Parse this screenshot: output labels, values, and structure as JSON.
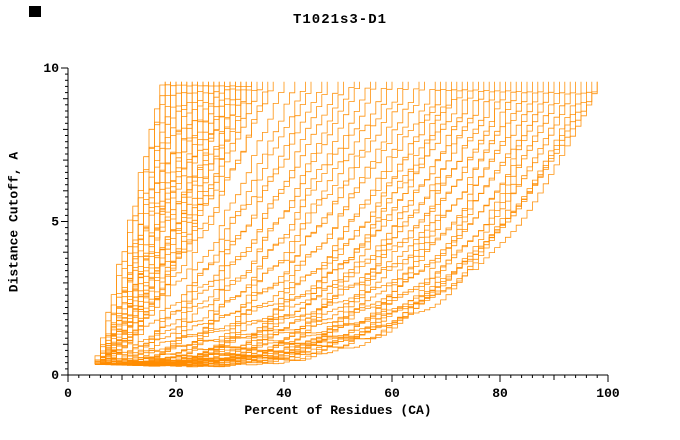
{
  "chart_data": {
    "type": "line",
    "title": "T1021s3-D1",
    "xlabel": "Percent of Residues (CA)",
    "ylabel": "Distance Cutoff, A",
    "xlim": [
      0,
      100
    ],
    "ylim": [
      0,
      10
    ],
    "x_major_ticks": [
      0,
      20,
      40,
      60,
      80,
      100
    ],
    "x_minor_step": 2,
    "y_major_ticks": [
      0,
      5,
      10
    ],
    "y_minor_step": 0.2,
    "grid": false,
    "legend": null,
    "line_color": "#ff8c00",
    "axis_color": "#000000",
    "y_start": 0.35,
    "y_end": 9.55,
    "curve_param_keys": [
      "x_start",
      "x_end",
      "shape_exponent",
      "wobble_amp",
      "wobble_phase"
    ],
    "curves": [
      [
        5,
        17.5,
        1.05,
        0.12,
        0.5
      ],
      [
        6,
        18,
        1.1,
        0.1,
        1.2
      ],
      [
        5.5,
        18.5,
        1.0,
        0.14,
        2.1
      ],
      [
        6.5,
        19,
        1.15,
        0.11,
        3.0
      ],
      [
        5,
        19.5,
        1.2,
        0.13,
        4.2
      ],
      [
        7,
        20,
        1.05,
        0.1,
        5.1
      ],
      [
        6,
        20.5,
        1.1,
        0.12,
        0.9
      ],
      [
        5.5,
        21,
        1.25,
        0.1,
        1.7
      ],
      [
        6.5,
        21.5,
        1.1,
        0.15,
        2.6
      ],
      [
        5,
        22,
        1.2,
        0.12,
        3.4
      ],
      [
        7,
        22.5,
        1.3,
        0.1,
        4.5
      ],
      [
        6,
        23,
        1.15,
        0.13,
        5.6
      ],
      [
        5.5,
        23.5,
        1.05,
        0.11,
        0.3
      ],
      [
        6.5,
        24,
        1.2,
        0.12,
        1.1
      ],
      [
        5,
        24.5,
        1.35,
        0.1,
        2.0
      ],
      [
        7,
        25,
        1.1,
        0.14,
        2.9
      ],
      [
        6,
        25.5,
        1.25,
        0.12,
        3.8
      ],
      [
        5.5,
        26,
        1.15,
        0.1,
        4.7
      ],
      [
        6.5,
        26.5,
        1.3,
        0.13,
        5.5
      ],
      [
        5,
        27,
        1.2,
        0.11,
        0.6
      ],
      [
        7,
        27.5,
        1.4,
        0.12,
        1.5
      ],
      [
        6,
        28,
        1.1,
        0.1,
        2.4
      ],
      [
        5.5,
        28.5,
        1.3,
        0.14,
        3.2
      ],
      [
        6.5,
        29,
        1.2,
        0.12,
        4.1
      ],
      [
        5,
        29.5,
        1.45,
        0.1,
        5.0
      ],
      [
        7,
        30,
        1.25,
        0.13,
        0.2
      ],
      [
        6,
        30.5,
        1.35,
        0.11,
        1.0
      ],
      [
        5.5,
        31,
        1.2,
        0.12,
        1.9
      ],
      [
        6.5,
        31.5,
        1.5,
        0.1,
        2.8
      ],
      [
        5,
        32,
        1.3,
        0.13,
        3.7
      ],
      [
        7,
        32.5,
        1.4,
        0.12,
        4.6
      ],
      [
        6,
        33,
        1.25,
        0.1,
        5.4
      ],
      [
        5.5,
        33.5,
        1.55,
        0.14,
        0.8
      ],
      [
        6.5,
        34,
        1.35,
        0.11,
        1.6
      ],
      [
        5,
        35,
        1.45,
        0.12,
        2.5
      ],
      [
        7,
        36,
        1.3,
        0.1,
        3.3
      ],
      [
        6,
        37,
        1.6,
        0.13,
        4.3
      ],
      [
        5.5,
        38,
        1.4,
        0.12,
        5.2
      ],
      [
        6,
        40,
        1.7,
        0.12,
        0.4
      ],
      [
        5,
        42,
        1.8,
        0.1,
        1.3
      ],
      [
        7,
        44,
        1.6,
        0.14,
        2.2
      ],
      [
        6,
        45,
        1.9,
        0.12,
        3.1
      ],
      [
        5.5,
        47,
        1.7,
        0.11,
        4.0
      ],
      [
        6.5,
        48,
        2.0,
        0.13,
        4.9
      ],
      [
        5,
        50,
        1.8,
        0.1,
        5.7
      ],
      [
        7,
        51,
        2.1,
        0.12,
        0.7
      ],
      [
        6,
        53,
        1.9,
        0.14,
        1.6
      ],
      [
        5.5,
        54,
        2.2,
        0.11,
        2.5
      ],
      [
        6.5,
        56,
        2.0,
        0.12,
        3.4
      ],
      [
        5,
        57,
        2.3,
        0.1,
        4.3
      ],
      [
        7,
        59,
        2.1,
        0.13,
        5.2
      ],
      [
        6,
        60,
        2.4,
        0.12,
        0.1
      ],
      [
        5.5,
        62,
        2.2,
        0.1,
        1.0
      ],
      [
        6.5,
        63,
        2.5,
        0.14,
        1.8
      ],
      [
        5,
        65,
        2.3,
        0.11,
        2.7
      ],
      [
        7,
        66,
        2.6,
        0.12,
        3.6
      ],
      [
        6,
        68,
        2.4,
        0.13,
        4.5
      ],
      [
        5.5,
        69,
        2.7,
        0.1,
        5.4
      ],
      [
        6.5,
        70,
        2.5,
        0.12,
        0.9
      ],
      [
        5,
        71,
        2.8,
        0.11,
        1.8
      ],
      [
        7,
        72,
        2.6,
        0.13,
        2.7
      ],
      [
        6,
        72.5,
        2.9,
        0.12,
        3.6
      ],
      [
        5.5,
        74,
        2.6,
        0.12,
        0.5
      ],
      [
        6,
        75,
        3.0,
        0.1,
        1.4
      ],
      [
        6.5,
        76,
        2.7,
        0.13,
        2.3
      ],
      [
        5,
        77,
        3.1,
        0.11,
        3.2
      ],
      [
        7,
        78,
        2.8,
        0.12,
        4.1
      ],
      [
        6,
        79,
        3.2,
        0.1,
        5.0
      ],
      [
        5.5,
        80,
        2.9,
        0.14,
        5.8
      ],
      [
        6.5,
        81,
        3.3,
        0.11,
        0.6
      ],
      [
        5,
        82,
        3.0,
        0.12,
        1.5
      ],
      [
        7,
        83,
        3.4,
        0.1,
        2.4
      ],
      [
        6,
        84,
        3.1,
        0.13,
        3.3
      ],
      [
        5.5,
        85,
        3.5,
        0.12,
        4.2
      ],
      [
        6.5,
        86,
        3.2,
        0.1,
        5.1
      ],
      [
        5,
        87,
        3.6,
        0.13,
        0.0
      ],
      [
        7,
        88,
        3.3,
        0.11,
        0.9
      ],
      [
        6,
        89,
        3.7,
        0.12,
        1.8
      ],
      [
        5.5,
        90,
        3.4,
        0.1,
        2.7
      ],
      [
        6.5,
        91,
        3.8,
        0.13,
        3.6
      ],
      [
        5,
        92,
        3.5,
        0.12,
        4.5
      ],
      [
        7,
        93,
        3.9,
        0.1,
        5.4
      ],
      [
        6,
        94,
        3.6,
        0.11,
        0.3
      ],
      [
        5.5,
        95,
        4.0,
        0.12,
        1.2
      ],
      [
        6.5,
        96,
        3.7,
        0.13,
        2.1
      ],
      [
        5,
        97,
        3.4,
        0.1,
        3.0
      ],
      [
        6,
        98,
        3.8,
        0.12,
        3.9
      ],
      [
        7,
        98,
        3.2,
        0.11,
        4.8
      ]
    ]
  }
}
